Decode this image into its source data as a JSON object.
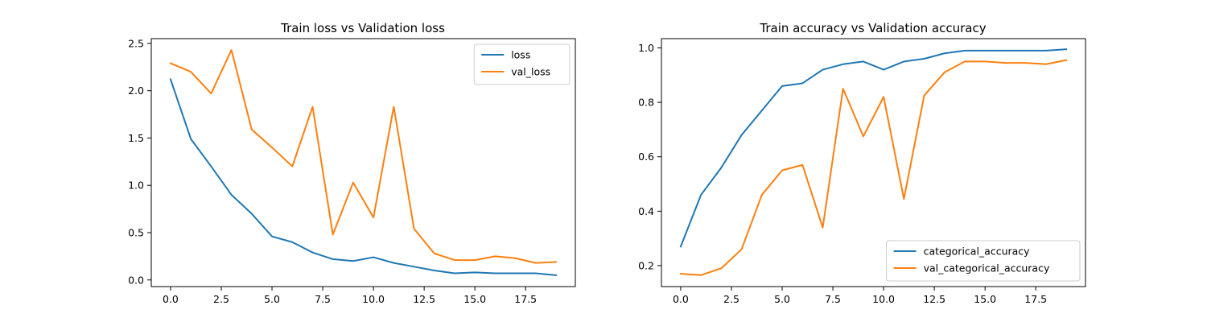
{
  "chart_data": [
    {
      "type": "line",
      "title": "Train loss vs Validation loss",
      "xlabel": "",
      "ylabel": "",
      "x": [
        0,
        1,
        2,
        3,
        4,
        5,
        6,
        7,
        8,
        9,
        10,
        11,
        12,
        13,
        14,
        15,
        16,
        17,
        18,
        19
      ],
      "xlim": [
        -0.95,
        19.95
      ],
      "ylim": [
        -0.07,
        2.55
      ],
      "xticks": [
        0,
        2.5,
        5,
        7.5,
        10,
        12.5,
        15,
        17.5
      ],
      "xtick_labels": [
        "0.0",
        "2.5",
        "5.0",
        "7.5",
        "10.0",
        "12.5",
        "15.0",
        "17.5"
      ],
      "yticks": [
        0,
        0.5,
        1,
        1.5,
        2,
        2.5
      ],
      "ytick_labels": [
        "0.0",
        "0.5",
        "1.0",
        "1.5",
        "2.0",
        "2.5"
      ],
      "grid": false,
      "legend": "upper right",
      "series": [
        {
          "name": "loss",
          "color": "#1f77b4",
          "values": [
            2.12,
            1.49,
            1.2,
            0.9,
            0.7,
            0.46,
            0.4,
            0.29,
            0.22,
            0.2,
            0.24,
            0.18,
            0.14,
            0.1,
            0.07,
            0.08,
            0.07,
            0.07,
            0.07,
            0.05
          ]
        },
        {
          "name": "val_loss",
          "color": "#ff7f0e",
          "values": [
            2.29,
            2.2,
            1.97,
            2.43,
            1.59,
            1.4,
            1.2,
            1.83,
            0.48,
            1.03,
            0.66,
            1.83,
            0.54,
            0.28,
            0.21,
            0.21,
            0.25,
            0.23,
            0.18,
            0.19
          ]
        }
      ]
    },
    {
      "type": "line",
      "title": "Train accuracy vs Validation accuracy",
      "xlabel": "",
      "ylabel": "",
      "x": [
        0,
        1,
        2,
        3,
        4,
        5,
        6,
        7,
        8,
        9,
        10,
        11,
        12,
        13,
        14,
        15,
        16,
        17,
        18,
        19
      ],
      "xlim": [
        -0.95,
        19.95
      ],
      "ylim": [
        0.123,
        1.034
      ],
      "xticks": [
        0,
        2.5,
        5,
        7.5,
        10,
        12.5,
        15,
        17.5
      ],
      "xtick_labels": [
        "0.0",
        "2.5",
        "5.0",
        "7.5",
        "10.0",
        "12.5",
        "15.0",
        "17.5"
      ],
      "yticks": [
        0.2,
        0.4,
        0.6,
        0.8,
        1.0
      ],
      "ytick_labels": [
        "0.2",
        "0.4",
        "0.6",
        "0.8",
        "1.0"
      ],
      "grid": false,
      "legend": "lower right",
      "series": [
        {
          "name": "categorical_accuracy",
          "color": "#1f77b4",
          "values": [
            0.27,
            0.46,
            0.56,
            0.68,
            0.77,
            0.86,
            0.87,
            0.92,
            0.94,
            0.95,
            0.92,
            0.95,
            0.96,
            0.98,
            0.99,
            0.99,
            0.99,
            0.99,
            0.99,
            0.995
          ]
        },
        {
          "name": "val_categorical_accuracy",
          "color": "#ff7f0e",
          "values": [
            0.17,
            0.165,
            0.19,
            0.26,
            0.46,
            0.55,
            0.57,
            0.34,
            0.85,
            0.675,
            0.82,
            0.445,
            0.825,
            0.91,
            0.95,
            0.95,
            0.945,
            0.945,
            0.94,
            0.955
          ]
        }
      ]
    }
  ]
}
